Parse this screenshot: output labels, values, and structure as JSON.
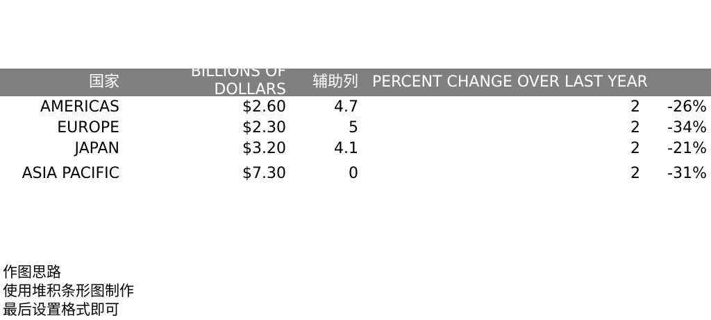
{
  "header": {
    "bg_color": "#808080",
    "text_color": "#ffffff",
    "col_country": "国家",
    "col_billions": "BILLIONS OF DOLLARS",
    "col_helper": "辅助列",
    "col_percent": "PERCENT CHANGE OVER LAST YEAR"
  },
  "rows": [
    {
      "country": "AMERICAS",
      "billions": "$2.60",
      "helper": "4.7",
      "two": "2",
      "pct": "-26%"
    },
    {
      "country": "EUROPE",
      "billions": "$2.30",
      "helper": "5",
      "two": "2",
      "pct": "-34%"
    },
    {
      "country": "JAPAN",
      "billions": "$3.20",
      "helper": "4.1",
      "two": "2",
      "pct": "-21%"
    },
    {
      "country": "ASIA PACIFIC",
      "billions": "$7.30",
      "helper": "0",
      "two": "2",
      "pct": "-31%"
    }
  ],
  "notes": {
    "line1": "作图思路",
    "line2": "使用堆积条形图制作",
    "line3": "最后设置格式即可"
  }
}
